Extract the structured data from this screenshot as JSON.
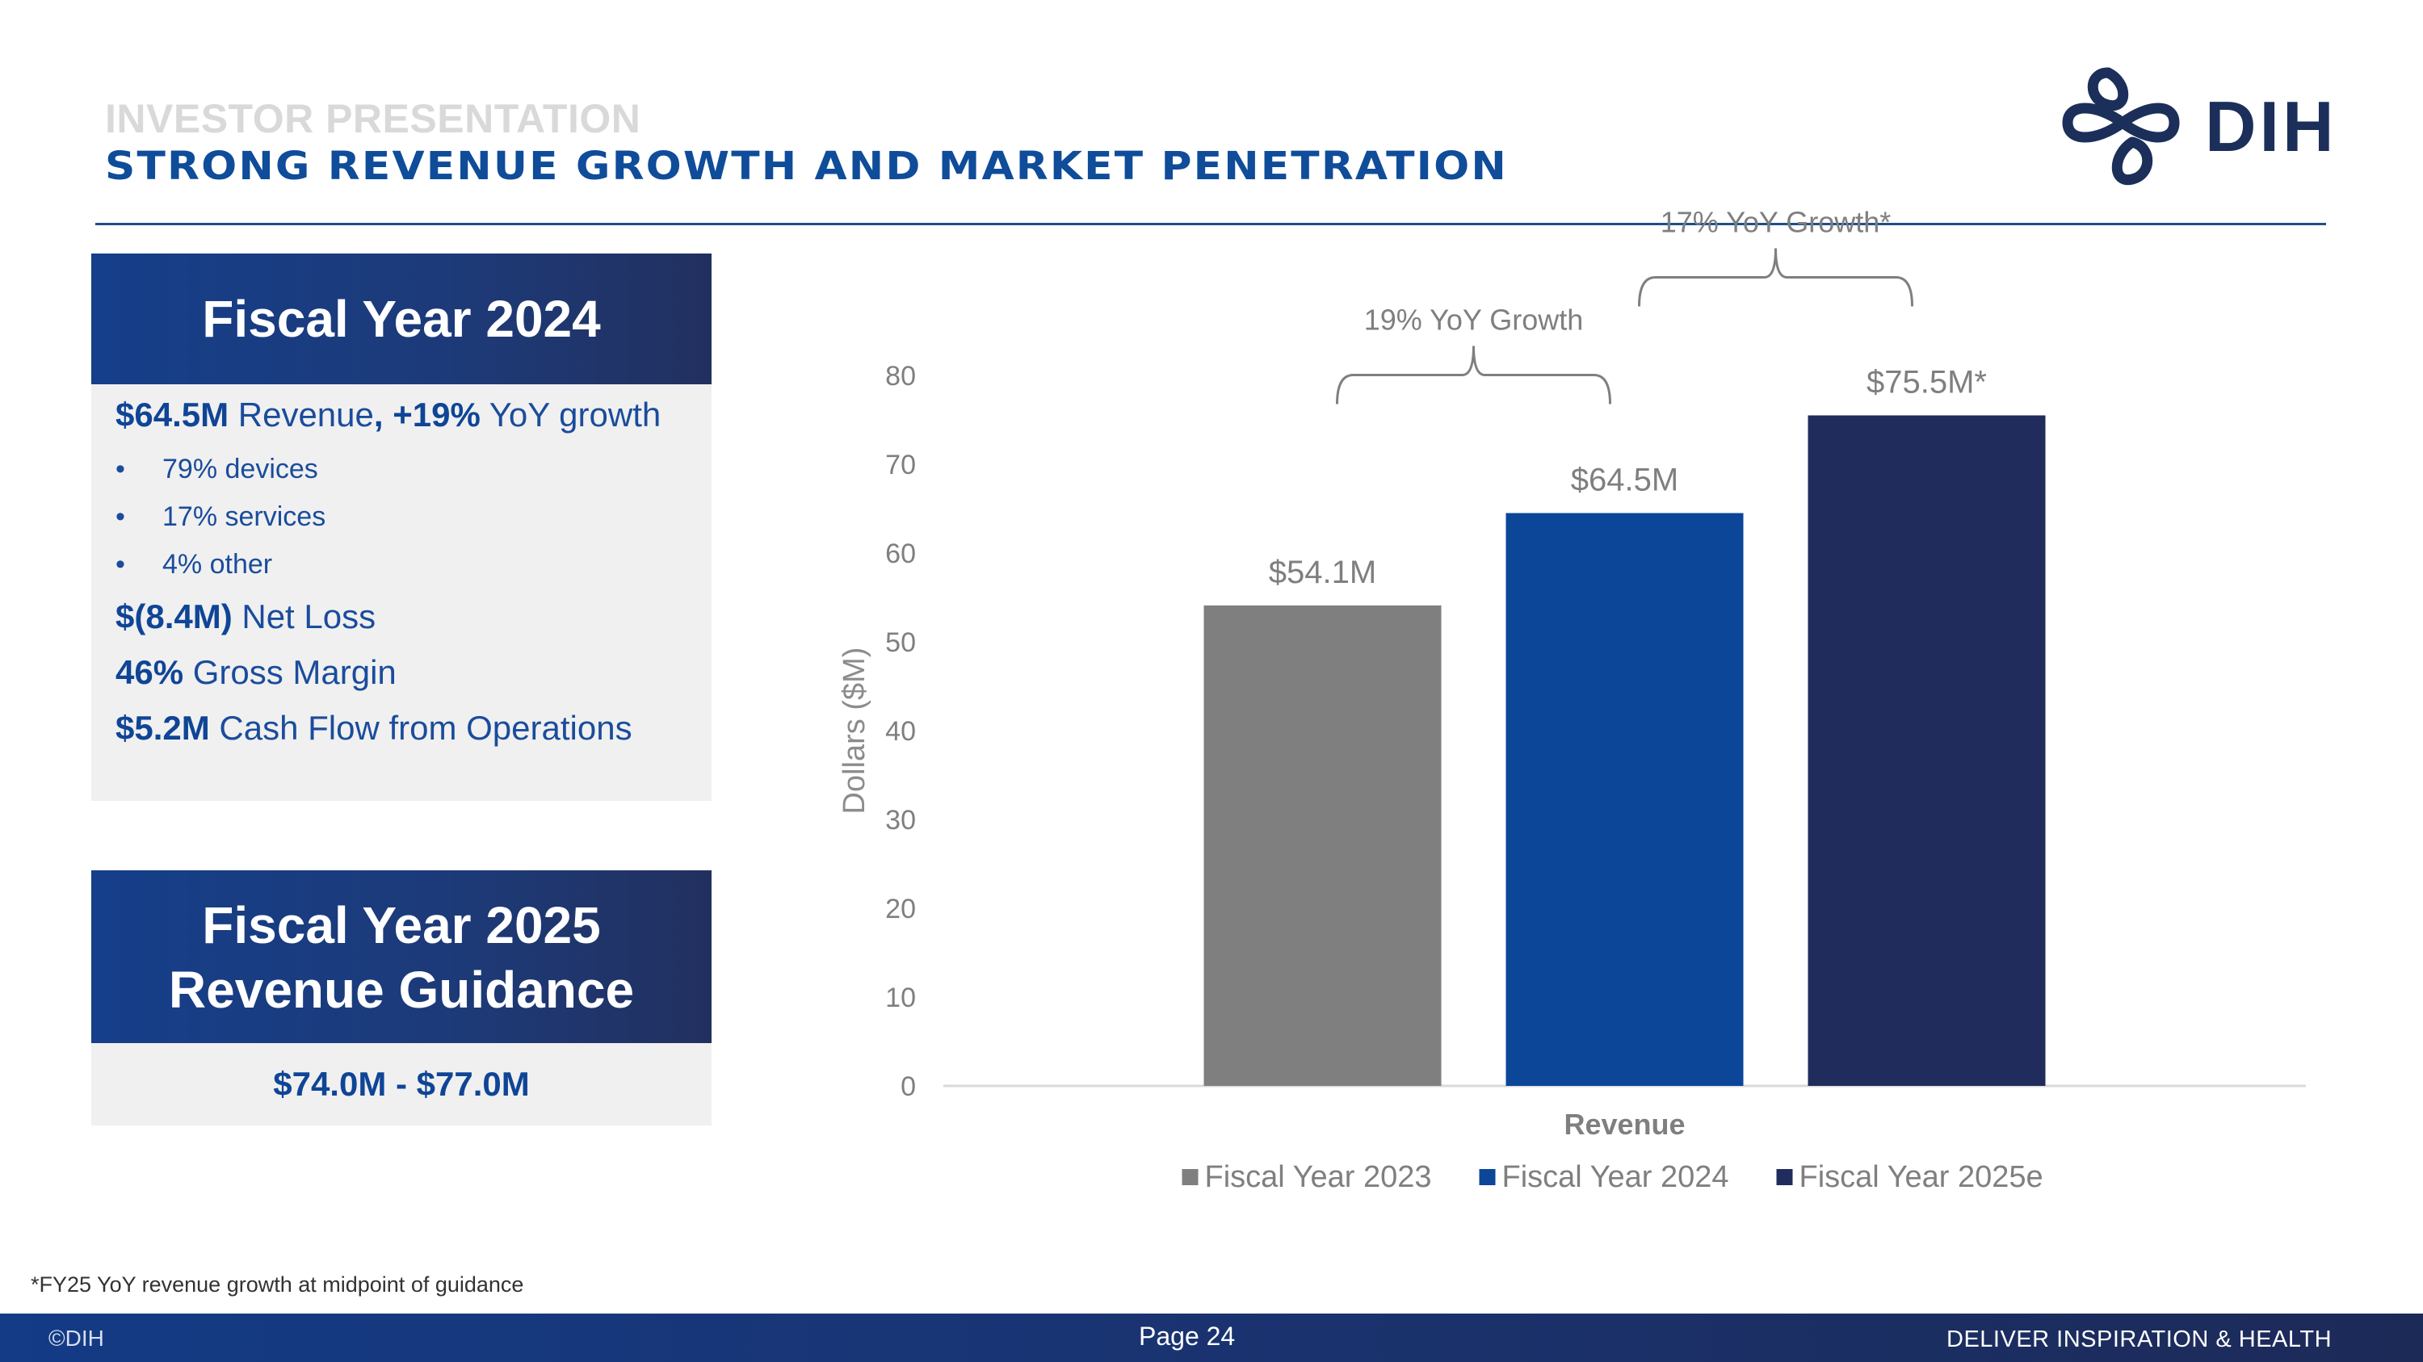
{
  "header": {
    "kicker": "INVESTOR PRESENTATION",
    "headline": "STRONG REVENUE GROWTH AND MARKET PENETRATION"
  },
  "logo": {
    "text": "DIH",
    "color": "#1c2f5a"
  },
  "fy24_panel": {
    "title": "Fiscal Year 2024",
    "revenue": {
      "value": "$64.5M",
      "label": " Revenue",
      "sep": ", ",
      "growth": "+19%",
      "growth_label": " YoY growth"
    },
    "bullets": [
      {
        "mark": "•",
        "text": "79% devices"
      },
      {
        "mark": "•",
        "text": "17% services"
      },
      {
        "mark": "•",
        "text": "4% other"
      }
    ],
    "net_loss": {
      "value": "$(8.4M)",
      "label": " Net Loss"
    },
    "gross_margin": {
      "value": "46%",
      "label": " Gross Margin"
    },
    "cash_flow": {
      "value": "$5.2M",
      "label": " Cash Flow from Operations"
    }
  },
  "fy25_panel": {
    "title_line1": "Fiscal Year 2025",
    "title_line2": "Revenue Guidance",
    "range": "$74.0M - $77.0M"
  },
  "chart_data": {
    "type": "bar",
    "title": "",
    "xlabel": "Revenue",
    "ylabel": "Dollars ($M)",
    "ylim": [
      0,
      80
    ],
    "yticks": [
      0,
      10,
      20,
      30,
      40,
      50,
      60,
      70,
      80
    ],
    "categories": [
      "Revenue"
    ],
    "series": [
      {
        "name": "Fiscal Year 2023",
        "values": [
          54.1
        ],
        "label": "$54.1M",
        "color": "#7f7f7f"
      },
      {
        "name": "Fiscal Year 2024",
        "values": [
          64.5
        ],
        "label": "$64.5M",
        "color": "#0b4699"
      },
      {
        "name": "Fiscal Year 2025e",
        "values": [
          75.5
        ],
        "label": "$75.5M*",
        "color": "#202d5c"
      }
    ],
    "annotations": [
      {
        "text": "19% YoY Growth",
        "from": "Fiscal Year 2023",
        "to": "Fiscal Year 2024"
      },
      {
        "text": "17% YoY Growth*",
        "from": "Fiscal Year 2024",
        "to": "Fiscal Year 2025e"
      }
    ],
    "legend": "bottom",
    "grid": false
  },
  "footnote": "*FY25 YoY revenue growth at midpoint of guidance",
  "footer": {
    "copyright": "©DIH",
    "page": "Page 24",
    "tagline": "DELIVER INSPIRATION & HEALTH"
  }
}
